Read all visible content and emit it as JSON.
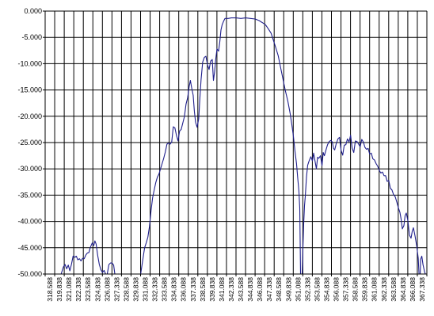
{
  "chart_data": {
    "type": "line",
    "title": "",
    "xlabel": "",
    "ylabel": "",
    "grid": true,
    "legend": "none",
    "ylim": [
      -50,
      0
    ],
    "yticks": [
      "0.000",
      "-5.000",
      "-10.000",
      "-15.000",
      "-20.000",
      "-25.000",
      "-30.000",
      "-35.000",
      "-40.000",
      "-45.000",
      "-50.000"
    ],
    "xlim": [
      318.588,
      366.588
    ],
    "xticks": [
      "318.588",
      "319.838",
      "321.088",
      "322.338",
      "323.588",
      "324.838",
      "326.088",
      "327.338",
      "328.588",
      "329.838",
      "331.088",
      "332.338",
      "333.588",
      "334.838",
      "336.088",
      "337.338",
      "338.588",
      "339.838",
      "341.088",
      "342.338",
      "343.588",
      "344.838",
      "346.088",
      "347.338",
      "348.588",
      "349.838",
      "351.088",
      "352.338",
      "353.588",
      "354.838",
      "356.088",
      "357.338",
      "358.588",
      "359.838",
      "361.088",
      "362.338",
      "363.588",
      "364.838",
      "366.088",
      "367.338"
    ],
    "series": [
      {
        "color": "#1f1f8c",
        "segments": [
          [
            [
              320.6,
              -50.0
            ],
            [
              320.9,
              -48.6
            ],
            [
              321.1,
              -48.2
            ],
            [
              321.3,
              -49.0
            ],
            [
              321.5,
              -48.3
            ],
            [
              321.7,
              -49.4
            ],
            [
              321.9,
              -48.1
            ],
            [
              322.1,
              -46.6
            ],
            [
              322.35,
              -46.8
            ],
            [
              322.5,
              -46.6
            ],
            [
              322.7,
              -47.3
            ],
            [
              322.9,
              -47.1
            ],
            [
              323.1,
              -47.5
            ],
            [
              323.3,
              -47.0
            ],
            [
              323.5,
              -47.1
            ],
            [
              323.7,
              -46.4
            ],
            [
              323.9,
              -46.0
            ],
            [
              324.1,
              -45.9
            ],
            [
              324.25,
              -45.0
            ],
            [
              324.5,
              -44.1
            ],
            [
              324.7,
              -44.6
            ],
            [
              324.84,
              -43.7
            ],
            [
              325.0,
              -44.3
            ],
            [
              325.2,
              -46.5
            ],
            [
              325.4,
              -48.2
            ],
            [
              325.6,
              -49.2
            ],
            [
              325.8,
              -49.7
            ],
            [
              326.0,
              -49.3
            ],
            [
              326.2,
              -50.0
            ]
          ],
          [
            [
              326.4,
              -50.0
            ],
            [
              326.6,
              -48.2
            ],
            [
              326.8,
              -47.9
            ],
            [
              327.0,
              -47.9
            ],
            [
              327.2,
              -48.3
            ],
            [
              327.35,
              -50.0
            ]
          ],
          [
            [
              330.6,
              -50.0
            ],
            [
              330.9,
              -47.0
            ],
            [
              331.1,
              -45.0
            ],
            [
              331.3,
              -44.1
            ],
            [
              331.5,
              -43.0
            ],
            [
              331.7,
              -41.0
            ],
            [
              331.9,
              -38.0
            ],
            [
              332.1,
              -35.5
            ],
            [
              332.3,
              -34.0
            ],
            [
              332.5,
              -32.6
            ],
            [
              332.7,
              -31.6
            ],
            [
              332.9,
              -31.0
            ],
            [
              333.1,
              -30.0
            ],
            [
              333.3,
              -29.0
            ],
            [
              333.5,
              -28.0
            ],
            [
              333.7,
              -26.8
            ],
            [
              333.9,
              -25.3
            ],
            [
              334.1,
              -25.1
            ],
            [
              334.3,
              -25.3
            ],
            [
              334.5,
              -24.9
            ],
            [
              334.7,
              -22.0
            ],
            [
              334.9,
              -22.2
            ],
            [
              335.1,
              -23.6
            ],
            [
              335.3,
              -24.7
            ],
            [
              335.5,
              -22.8
            ],
            [
              335.7,
              -22.5
            ],
            [
              335.9,
              -21.3
            ],
            [
              336.1,
              -20.1
            ],
            [
              336.3,
              -17.7
            ],
            [
              336.5,
              -16.5
            ],
            [
              336.7,
              -14.3
            ],
            [
              336.85,
              -13.2
            ],
            [
              337.0,
              -14.5
            ],
            [
              337.2,
              -16.0
            ],
            [
              337.35,
              -19.0
            ],
            [
              337.5,
              -21.1
            ],
            [
              337.7,
              -22.1
            ],
            [
              337.9,
              -20.5
            ],
            [
              338.05,
              -16.5
            ],
            [
              338.2,
              -13.0
            ],
            [
              338.4,
              -9.7
            ],
            [
              338.6,
              -8.8
            ],
            [
              338.8,
              -8.6
            ],
            [
              339.0,
              -10.2
            ],
            [
              339.2,
              -11.1
            ],
            [
              339.4,
              -9.5
            ],
            [
              339.6,
              -9.2
            ],
            [
              339.75,
              -13.2
            ],
            [
              339.9,
              -11.5
            ],
            [
              340.05,
              -9.0
            ],
            [
              340.2,
              -7.2
            ],
            [
              340.4,
              -7.6
            ],
            [
              340.55,
              -5.9
            ],
            [
              340.7,
              -3.6
            ],
            [
              340.85,
              -2.6
            ],
            [
              341.0,
              -2.0
            ],
            [
              341.2,
              -1.4
            ],
            [
              341.6,
              -1.4
            ],
            [
              342.0,
              -1.3
            ],
            [
              342.6,
              -1.3
            ],
            [
              343.2,
              -1.4
            ],
            [
              343.8,
              -1.3
            ],
            [
              344.4,
              -1.4
            ],
            [
              345.0,
              -1.5
            ],
            [
              345.5,
              -1.8
            ],
            [
              345.9,
              -2.2
            ],
            [
              346.3,
              -2.6
            ],
            [
              346.7,
              -3.5
            ],
            [
              347.0,
              -4.2
            ],
            [
              347.3,
              -5.6
            ],
            [
              347.6,
              -7.0
            ],
            [
              347.9,
              -8.5
            ],
            [
              348.2,
              -10.8
            ],
            [
              348.5,
              -13.0
            ],
            [
              348.8,
              -15.2
            ],
            [
              349.1,
              -17.1
            ],
            [
              349.4,
              -19.5
            ],
            [
              349.6,
              -21.5
            ],
            [
              349.8,
              -23.7
            ],
            [
              350.0,
              -26.6
            ],
            [
              350.2,
              -29.0
            ],
            [
              350.35,
              -31.7
            ],
            [
              350.5,
              -34.2
            ],
            [
              350.6,
              -37.5
            ],
            [
              350.7,
              -50.0
            ]
          ],
          [
            [
              350.9,
              -50.0
            ],
            [
              351.0,
              -45.0
            ],
            [
              351.1,
              -40.3
            ],
            [
              351.2,
              -37.0
            ],
            [
              351.3,
              -35.2
            ],
            [
              351.45,
              -31.5
            ],
            [
              351.6,
              -29.3
            ],
            [
              351.8,
              -28.4
            ],
            [
              352.0,
              -27.7
            ],
            [
              352.2,
              -28.5
            ],
            [
              352.35,
              -27.0
            ],
            [
              352.5,
              -28.3
            ],
            [
              352.7,
              -30.0
            ],
            [
              352.85,
              -27.8
            ],
            [
              353.0,
              -28.0
            ],
            [
              353.2,
              -27.5
            ],
            [
              353.4,
              -29.4
            ],
            [
              353.55,
              -26.9
            ],
            [
              353.7,
              -27.5
            ],
            [
              353.9,
              -26.4
            ],
            [
              354.1,
              -25.4
            ],
            [
              354.3,
              -24.8
            ],
            [
              354.5,
              -24.6
            ],
            [
              354.7,
              -24.9
            ],
            [
              354.85,
              -26.1
            ],
            [
              355.0,
              -26.4
            ],
            [
              355.2,
              -25.2
            ],
            [
              355.4,
              -24.3
            ],
            [
              355.6,
              -24.0
            ],
            [
              355.8,
              -26.5
            ],
            [
              356.0,
              -27.4
            ],
            [
              356.2,
              -25.5
            ],
            [
              356.4,
              -25.4
            ],
            [
              356.6,
              -24.3
            ],
            [
              356.8,
              -24.9
            ],
            [
              357.0,
              -23.6
            ],
            [
              357.2,
              -26.1
            ],
            [
              357.4,
              -26.9
            ],
            [
              357.6,
              -24.7
            ],
            [
              357.8,
              -24.8
            ],
            [
              358.0,
              -25.3
            ],
            [
              358.2,
              -25.8
            ],
            [
              358.4,
              -24.4
            ],
            [
              358.6,
              -24.9
            ],
            [
              358.8,
              -25.9
            ],
            [
              359.0,
              -26.3
            ],
            [
              359.2,
              -26.1
            ],
            [
              359.4,
              -27.2
            ],
            [
              359.6,
              -27.0
            ],
            [
              359.8,
              -28.1
            ],
            [
              360.0,
              -28.3
            ],
            [
              360.2,
              -29.0
            ],
            [
              360.4,
              -29.5
            ],
            [
              360.6,
              -30.3
            ],
            [
              360.8,
              -30.8
            ],
            [
              361.0,
              -30.6
            ],
            [
              361.2,
              -31.3
            ],
            [
              361.4,
              -31.3
            ],
            [
              361.6,
              -32.4
            ],
            [
              361.8,
              -32.2
            ],
            [
              362.0,
              -33.7
            ],
            [
              362.2,
              -34.0
            ],
            [
              362.4,
              -34.9
            ],
            [
              362.6,
              -35.3
            ],
            [
              362.8,
              -36.3
            ],
            [
              363.0,
              -37.4
            ],
            [
              363.2,
              -38.3
            ],
            [
              363.35,
              -39.6
            ],
            [
              363.5,
              -41.4
            ],
            [
              363.7,
              -40.8
            ],
            [
              363.85,
              -38.9
            ],
            [
              364.0,
              -38.4
            ],
            [
              364.2,
              -39.8
            ],
            [
              364.4,
              -42.6
            ],
            [
              364.6,
              -43.2
            ],
            [
              364.75,
              -41.9
            ],
            [
              364.9,
              -41.2
            ],
            [
              365.1,
              -42.8
            ],
            [
              365.3,
              -44.6
            ],
            [
              365.5,
              -47.0
            ],
            [
              365.6,
              -50.0
            ]
          ],
          [
            [
              365.75,
              -50.0
            ],
            [
              365.8,
              -47.2
            ],
            [
              365.95,
              -46.6
            ],
            [
              366.1,
              -48.2
            ],
            [
              366.3,
              -49.6
            ],
            [
              366.4,
              -50.0
            ]
          ]
        ]
      }
    ]
  }
}
